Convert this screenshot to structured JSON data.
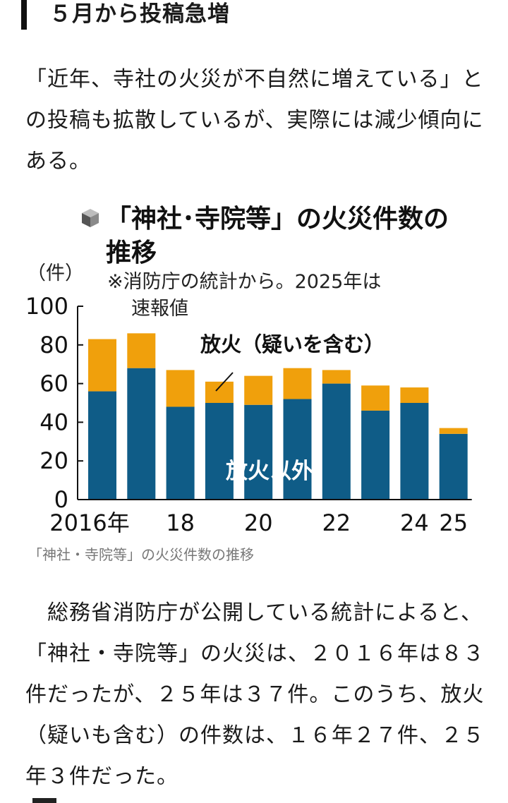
{
  "section": {
    "heading": "５月から投稿急増"
  },
  "intro_paragraph": "「近年、寺社の火災が不自然に増えている」との投稿も拡散しているが、実際には減少傾向にある。",
  "figure": {
    "caption": "「神社・寺院等」の火災件数の推移",
    "title_line1": "「神社･寺院等」の火災件数の",
    "title_line2": "推移",
    "note_line1": "※消防庁の統計から。2025年は",
    "note_line2": "速報値",
    "unit_label": "（件）"
  },
  "chart_data": {
    "type": "bar",
    "stacked": true,
    "categories": [
      "2016年",
      "17",
      "18",
      "19",
      "20",
      "21",
      "22",
      "23",
      "24",
      "25"
    ],
    "tick_labels": [
      "2016年",
      "",
      "18",
      "",
      "20",
      "",
      "22",
      "",
      "24",
      "25"
    ],
    "series": [
      {
        "name": "放火以外",
        "values": [
          56,
          68,
          48,
          50,
          49,
          52,
          60,
          46,
          50,
          34
        ],
        "color": "#0f5c87"
      },
      {
        "name": "放火（疑いを含む）",
        "values": [
          27,
          18,
          19,
          11,
          15,
          16,
          7,
          13,
          8,
          3
        ],
        "color": "#f0a00c"
      }
    ],
    "ylim": [
      0,
      100
    ],
    "yticks": [
      0,
      20,
      40,
      60,
      80,
      100
    ],
    "grid": false
  },
  "body_paragraph": "　総務省消防庁が公開している統計によると、「神社・寺院等」の火災は、２０１６年は８３件だったが、２５年は３７件。このうち、放火（疑いも含む）の件数は、１６年２７件、２５年３件だった。"
}
